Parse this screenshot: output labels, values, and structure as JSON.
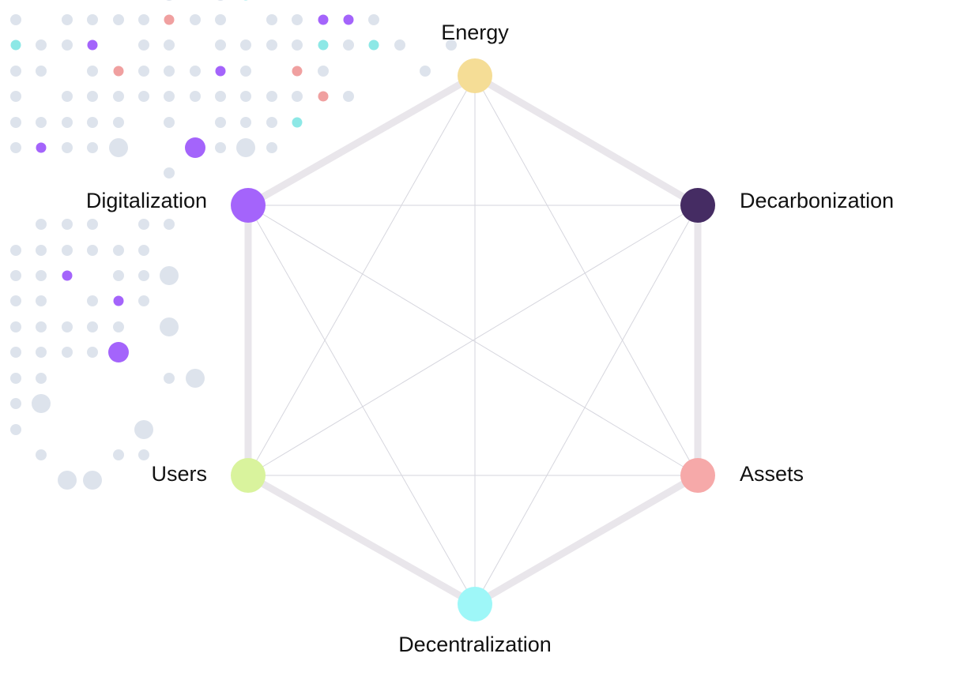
{
  "nodes": [
    {
      "label": "Energy"
    },
    {
      "label": "Decarbonization"
    },
    {
      "label": "Assets"
    },
    {
      "label": "Decentralization"
    },
    {
      "label": "Users"
    },
    {
      "label": "Digitalization"
    }
  ]
}
